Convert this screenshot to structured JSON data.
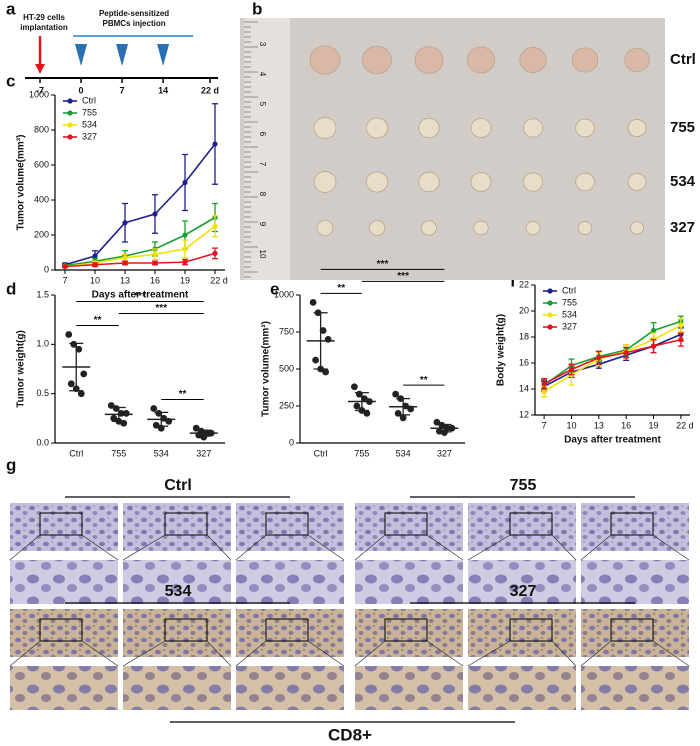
{
  "panel_labels": [
    "a",
    "b",
    "c",
    "d",
    "e",
    "f",
    "g"
  ],
  "timeline": {
    "events": [
      {
        "lines": [
          "HT-29 cells",
          "implantation"
        ]
      },
      {
        "lines": [
          "Peptide-sensitized",
          "PBMCs injection"
        ]
      }
    ],
    "ticks": [
      -7,
      0,
      7,
      14,
      {
        "value": 22,
        "label": "22 d"
      }
    ]
  },
  "photo": {
    "scale_labels": [
      "3",
      "4",
      "5",
      "6",
      "7",
      "8",
      "9",
      "10"
    ],
    "row_labels": [
      "Ctrl",
      "755",
      "534",
      "327"
    ]
  },
  "histology": {
    "groups": [
      {
        "label": "Ctrl"
      },
      {
        "label": "755"
      },
      {
        "label": "534"
      },
      {
        "label": "327"
      }
    ],
    "marker": "CD8+"
  },
  "chart_data": [
    {
      "type": "line",
      "xlabel": "Days after treatment",
      "ylabel": "Tumor volume(mm³)",
      "x": [
        7,
        10,
        13,
        16,
        19,
        22
      ],
      "xlim": [
        6,
        23
      ],
      "xticks": [
        7,
        10,
        13,
        16,
        19,
        {
          "value": 22,
          "label": "22 d"
        }
      ],
      "ylim": [
        0,
        1000
      ],
      "yticks": [
        0,
        200,
        400,
        600,
        800,
        1000
      ],
      "legend": "upper left",
      "series": [
        {
          "name": "Ctrl",
          "color": "#1f1f8f",
          "values": [
            30,
            80,
            270,
            320,
            500,
            720
          ],
          "errors": [
            10,
            30,
            110,
            110,
            160,
            230
          ]
        },
        {
          "name": "755",
          "color": "#1a9e34",
          "values": [
            25,
            50,
            80,
            120,
            200,
            300
          ],
          "errors": [
            5,
            15,
            30,
            40,
            80,
            80
          ]
        },
        {
          "name": "534",
          "color": "#f2e200",
          "values": [
            20,
            40,
            70,
            90,
            120,
            250
          ],
          "errors": [
            5,
            10,
            20,
            30,
            50,
            60
          ]
        },
        {
          "name": "327",
          "color": "#e3151b",
          "values": [
            20,
            30,
            40,
            40,
            45,
            95
          ],
          "errors": [
            5,
            10,
            10,
            10,
            15,
            30
          ]
        }
      ]
    },
    {
      "type": "dotplot",
      "ylabel": "Tumor weight(g)",
      "categories": [
        "Ctrl",
        "755",
        "534",
        "327"
      ],
      "values": [
        [
          1.1,
          1.0,
          0.95,
          0.7,
          0.6,
          0.55,
          0.5
        ],
        [
          0.38,
          0.35,
          0.3,
          0.3,
          0.25,
          0.22,
          0.2
        ],
        [
          0.35,
          0.3,
          0.25,
          0.22,
          0.18,
          0.15
        ],
        [
          0.15,
          0.12,
          0.1,
          0.1,
          0.08,
          0.06
        ]
      ],
      "mean": [
        0.77,
        0.29,
        0.24,
        0.1
      ],
      "sd": [
        0.24,
        0.07,
        0.07,
        0.03
      ],
      "ylim": [
        0,
        1.5
      ],
      "yticks": [
        {
          "value": 0,
          "label": "0.0"
        },
        0.5,
        {
          "value": 1,
          "label": "1.0"
        },
        1.5
      ],
      "color": "#222222",
      "annotations": [
        {
          "label": "**",
          "between": [
            "Ctrl",
            "755"
          ]
        },
        {
          "label": "***",
          "between": [
            "Ctrl",
            "327"
          ]
        },
        {
          "label": "***",
          "between": [
            "755",
            "327"
          ]
        },
        {
          "label": "**",
          "between": [
            "534",
            "327"
          ]
        }
      ]
    },
    {
      "type": "dotplot",
      "ylabel": "Tumor volume(mm³)",
      "categories": [
        "Ctrl",
        "755",
        "534",
        "327"
      ],
      "values": [
        [
          950,
          880,
          760,
          700,
          560,
          500,
          480
        ],
        [
          380,
          330,
          300,
          280,
          250,
          220,
          200
        ],
        [
          330,
          300,
          250,
          230,
          200,
          170
        ],
        [
          140,
          120,
          100,
          100,
          80,
          70
        ]
      ],
      "mean": [
        690,
        280,
        245,
        100
      ],
      "sd": [
        190,
        60,
        55,
        25
      ],
      "ylim": [
        0,
        1000
      ],
      "yticks": [
        0,
        250,
        500,
        750,
        1000
      ],
      "color": "#222222",
      "annotations": [
        {
          "label": "**",
          "between": [
            "Ctrl",
            "755"
          ]
        },
        {
          "label": "***",
          "between": [
            "Ctrl",
            "327"
          ]
        },
        {
          "label": "***",
          "between": [
            "755",
            "327"
          ]
        },
        {
          "label": "**",
          "between": [
            "534",
            "327"
          ]
        }
      ]
    },
    {
      "type": "line",
      "xlabel": "Days after treatment",
      "ylabel": "Body weight(g)",
      "x": [
        7,
        10,
        13,
        16,
        19,
        22
      ],
      "xlim": [
        6,
        23
      ],
      "xticks": [
        7,
        10,
        13,
        16,
        19,
        {
          "value": 22,
          "label": "22 d"
        }
      ],
      "ylim": [
        12,
        22
      ],
      "yticks": [
        12,
        14,
        16,
        18,
        20,
        22
      ],
      "legend": "upper left",
      "series": [
        {
          "name": "Ctrl",
          "color": "#1f1f8f",
          "values": [
            14.2,
            15.3,
            15.9,
            16.6,
            17.3,
            18.2
          ],
          "errors": [
            0.4,
            0.4,
            0.3,
            0.4,
            0.5,
            0.5
          ]
        },
        {
          "name": "755",
          "color": "#1a9e34",
          "values": [
            14.3,
            15.8,
            16.5,
            17.0,
            18.5,
            19.2
          ],
          "errors": [
            0.4,
            0.5,
            0.4,
            0.4,
            0.6,
            0.4
          ]
        },
        {
          "name": "534",
          "color": "#f2e200",
          "values": [
            13.8,
            15.1,
            16.3,
            16.9,
            17.8,
            18.9
          ],
          "errors": [
            0.4,
            0.8,
            0.5,
            0.5,
            0.5,
            0.5
          ]
        },
        {
          "name": "327",
          "color": "#e3151b",
          "values": [
            14.4,
            15.5,
            16.4,
            16.8,
            17.3,
            17.8
          ],
          "errors": [
            0.4,
            0.4,
            0.5,
            0.4,
            0.5,
            0.5
          ]
        }
      ]
    }
  ]
}
